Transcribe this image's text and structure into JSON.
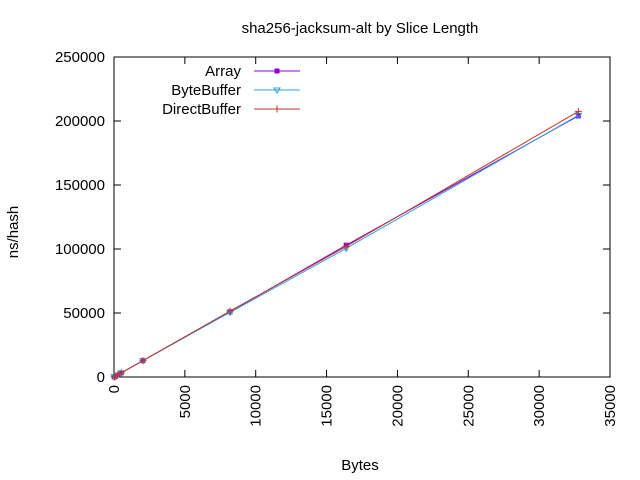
{
  "chart_data": {
    "type": "line",
    "title": "sha256-jacksum-alt by Slice Length",
    "xlabel": "Bytes",
    "ylabel": "ns/hash",
    "xlim": [
      0,
      35000
    ],
    "ylim": [
      0,
      250000
    ],
    "xticks": [
      0,
      5000,
      10000,
      15000,
      20000,
      25000,
      30000,
      35000
    ],
    "yticks": [
      0,
      50000,
      100000,
      150000,
      200000,
      250000
    ],
    "x_tick_labels_rotated": true,
    "grid": false,
    "legend_position": "top-left",
    "series": [
      {
        "name": "Array",
        "color": "#9400d3",
        "marker": "filled-square",
        "points": [
          [
            16,
            100
          ],
          [
            64,
            400
          ],
          [
            256,
            1600
          ],
          [
            512,
            3200
          ],
          [
            2048,
            12800
          ],
          [
            8192,
            51000
          ],
          [
            16384,
            103000
          ],
          [
            32768,
            204000
          ]
        ]
      },
      {
        "name": "ByteBuffer",
        "color": "#2aa3d8",
        "marker": "down-triangle",
        "points": [
          [
            16,
            100
          ],
          [
            64,
            400
          ],
          [
            256,
            1600
          ],
          [
            512,
            3200
          ],
          [
            2048,
            12800
          ],
          [
            8192,
            50500
          ],
          [
            16384,
            100500
          ],
          [
            32768,
            204500
          ]
        ]
      },
      {
        "name": "DirectBuffer",
        "color": "#c0342c",
        "marker": "plus",
        "points": [
          [
            16,
            100
          ],
          [
            64,
            400
          ],
          [
            256,
            1600
          ],
          [
            512,
            3200
          ],
          [
            2048,
            12800
          ],
          [
            8192,
            51500
          ],
          [
            16384,
            102000
          ],
          [
            32768,
            207500
          ]
        ]
      }
    ]
  }
}
